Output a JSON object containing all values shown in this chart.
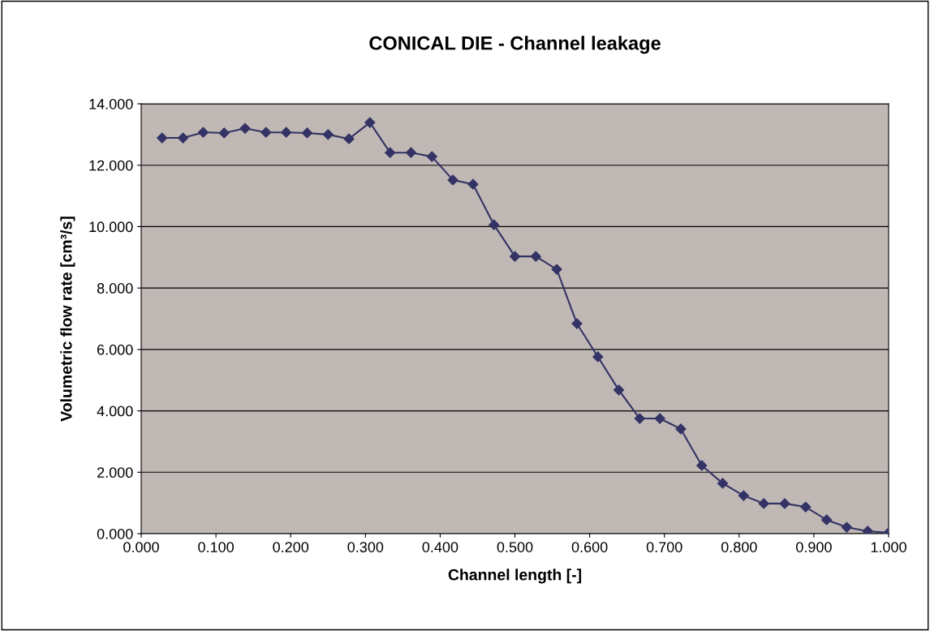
{
  "chart_data": {
    "type": "line",
    "title": "CONICAL DIE - Channel leakage",
    "xlabel": "Channel length [-]",
    "ylabel": "Volumetric flow rate [cm³/s]",
    "x": [
      0.028,
      0.056,
      0.083,
      0.111,
      0.139,
      0.167,
      0.194,
      0.222,
      0.25,
      0.278,
      0.306,
      0.333,
      0.361,
      0.389,
      0.417,
      0.444,
      0.472,
      0.5,
      0.528,
      0.556,
      0.583,
      0.611,
      0.639,
      0.667,
      0.694,
      0.722,
      0.75,
      0.778,
      0.806,
      0.833,
      0.861,
      0.889,
      0.917,
      0.944,
      0.972,
      1.0
    ],
    "series": [
      {
        "color": "#333366",
        "values": [
          12.89,
          12.89,
          13.07,
          13.05,
          13.2,
          13.07,
          13.07,
          13.05,
          13.0,
          12.86,
          13.39,
          12.41,
          12.41,
          12.28,
          11.52,
          11.38,
          10.06,
          9.03,
          9.03,
          8.61,
          6.84,
          5.76,
          4.68,
          3.75,
          3.75,
          3.41,
          2.22,
          1.64,
          1.24,
          0.98,
          0.98,
          0.87,
          0.45,
          0.21,
          0.08,
          0.03
        ]
      }
    ],
    "xlim": [
      0,
      1
    ],
    "xticks": [
      {
        "value": 0,
        "label": "0.000"
      },
      {
        "value": 0.1,
        "label": "0.100"
      },
      {
        "value": 0.2,
        "label": "0.200"
      },
      {
        "value": 0.3,
        "label": "0.300"
      },
      {
        "value": 0.4,
        "label": "0.400"
      },
      {
        "value": 0.5,
        "label": "0.500"
      },
      {
        "value": 0.6,
        "label": "0.600"
      },
      {
        "value": 0.7,
        "label": "0.700"
      },
      {
        "value": 0.8,
        "label": "0.800"
      },
      {
        "value": 0.9,
        "label": "0.900"
      },
      {
        "value": 1,
        "label": "1.000"
      }
    ],
    "ylim": [
      0,
      14
    ],
    "yticks": [
      {
        "value": 0,
        "label": "0.000"
      },
      {
        "value": 2,
        "label": "2.000"
      },
      {
        "value": 4,
        "label": "4.000"
      },
      {
        "value": 6,
        "label": "6.000"
      },
      {
        "value": 8,
        "label": "8.000"
      },
      {
        "value": 10,
        "label": "10.000"
      },
      {
        "value": 12,
        "label": "12.000"
      },
      {
        "value": 14,
        "label": "14.000"
      }
    ],
    "grid": "y",
    "marker": "diamond",
    "line_style": "solid",
    "legend": false
  }
}
